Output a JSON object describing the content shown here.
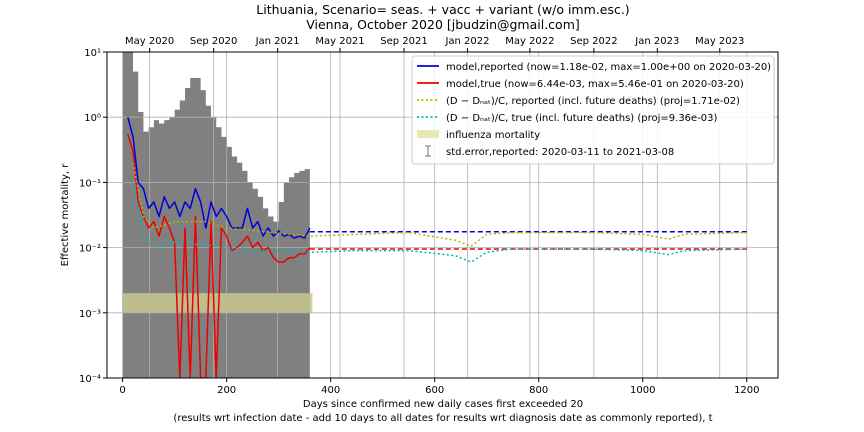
{
  "chart_data": {
    "type": "line",
    "title_line1": "Lithuania, Scenario= seas. + vacc + variant (w/o imm.esc.)",
    "title_line2": "Vienna, October 2020 [jbudzin@gmail.com]",
    "xlabel_line1": "Days since confirmed new daily cases first exceeded 20",
    "xlabel_line2": "(results wrt infection date - add 10 days to all dates for results wrt diagnosis date as commonly reported), t",
    "ylabel": "Effective mortality, r",
    "xlim": [
      -30,
      1260
    ],
    "ylim": [
      0.0001,
      10
    ],
    "yscale": "log",
    "grid": true,
    "legend_position": "top-right",
    "x_ticks": [
      0,
      200,
      400,
      600,
      800,
      1000,
      1200
    ],
    "y_ticks": [
      {
        "value": 0.0001,
        "label": "10⁻⁴"
      },
      {
        "value": 0.001,
        "label": "10⁻³"
      },
      {
        "value": 0.01,
        "label": "10⁻²"
      },
      {
        "value": 0.1,
        "label": "10⁻¹"
      },
      {
        "value": 1,
        "label": "10⁰"
      },
      {
        "value": 10,
        "label": "10¹"
      }
    ],
    "top_axis_ticks": [
      {
        "x": 52,
        "label": "May 2020"
      },
      {
        "x": 175,
        "label": "Sep 2020"
      },
      {
        "x": 298,
        "label": "Jan 2021"
      },
      {
        "x": 418,
        "label": "May 2021"
      },
      {
        "x": 541,
        "label": "Sep 2021"
      },
      {
        "x": 663,
        "label": "Jan 2022"
      },
      {
        "x": 783,
        "label": "May 2022"
      },
      {
        "x": 906,
        "label": "Sep 2022"
      },
      {
        "x": 1028,
        "label": "Jan 2023"
      },
      {
        "x": 1148,
        "label": "May 2023"
      }
    ],
    "influenza_band": {
      "x": [
        0,
        365
      ],
      "y": [
        0.001,
        0.002
      ]
    },
    "std_error_band": {
      "name": "std.error,reported: 2020-03-11 to 2021-03-08",
      "x": [
        0,
        10,
        20,
        30,
        40,
        50,
        60,
        70,
        80,
        90,
        100,
        110,
        120,
        130,
        140,
        150,
        160,
        170,
        180,
        190,
        200,
        210,
        220,
        230,
        240,
        250,
        260,
        270,
        280,
        290,
        300,
        310,
        320,
        330,
        340,
        350,
        360
      ],
      "upper": [
        10,
        10,
        5,
        1.2,
        0.6,
        0.7,
        0.9,
        0.8,
        0.9,
        1.0,
        1.3,
        1.8,
        2.8,
        4.0,
        4.0,
        2.6,
        1.5,
        1.0,
        0.7,
        0.5,
        0.35,
        0.25,
        0.2,
        0.15,
        0.1,
        0.08,
        0.06,
        0.04,
        0.03,
        0.025,
        0.05,
        0.1,
        0.12,
        0.14,
        0.15,
        0.16,
        0.16
      ]
    },
    "series": [
      {
        "name": "model,reported (now=1.18e-02, max=1.00e+00 on 2020-03-20)",
        "color": "#0000dd",
        "style": "solid",
        "x": [
          10,
          20,
          30,
          40,
          50,
          60,
          70,
          80,
          90,
          100,
          110,
          120,
          130,
          140,
          150,
          160,
          170,
          180,
          190,
          200,
          210,
          220,
          230,
          240,
          250,
          260,
          270,
          280,
          290,
          300,
          310,
          320,
          330,
          340,
          350,
          360
        ],
        "values": [
          1.0,
          0.5,
          0.1,
          0.08,
          0.04,
          0.05,
          0.03,
          0.06,
          0.04,
          0.05,
          0.03,
          0.05,
          0.04,
          0.08,
          0.05,
          0.02,
          0.05,
          0.03,
          0.04,
          0.03,
          0.02,
          0.02,
          0.02,
          0.04,
          0.02,
          0.025,
          0.015,
          0.02,
          0.015,
          0.018,
          0.015,
          0.016,
          0.014,
          0.015,
          0.014,
          0.02
        ]
      },
      {
        "name": "model,reported projection",
        "color": "#0000dd",
        "style": "dashed",
        "x": [
          360,
          1200
        ],
        "values": [
          0.0175,
          0.0175
        ]
      },
      {
        "name": "model,true (now=6.44e-03, max=5.46e-01 on 2020-03-20)",
        "color": "#ee0000",
        "style": "solid",
        "x": [
          10,
          20,
          30,
          40,
          50,
          60,
          70,
          80,
          90,
          100,
          110,
          120,
          130,
          140,
          150,
          160,
          170,
          180,
          190,
          200,
          210,
          220,
          230,
          240,
          250,
          260,
          270,
          280,
          290,
          300,
          310,
          320,
          330,
          340,
          350,
          360
        ],
        "values": [
          0.55,
          0.3,
          0.05,
          0.03,
          0.02,
          0.025,
          0.015,
          0.03,
          0.02,
          0.012,
          0.0001,
          0.02,
          0.0001,
          0.03,
          0.0001,
          0.0001,
          0.025,
          0.0001,
          0.02,
          0.015,
          0.009,
          0.01,
          0.012,
          0.015,
          0.01,
          0.012,
          0.009,
          0.01,
          0.007,
          0.006,
          0.006,
          0.007,
          0.007,
          0.008,
          0.008,
          0.01
        ]
      },
      {
        "name": "model,true projection",
        "color": "#ee0000",
        "style": "dashed",
        "x": [
          360,
          1200
        ],
        "values": [
          0.0095,
          0.0095
        ]
      },
      {
        "name": "(D − D_nat)/C, reported (incl. future deaths) (proj=1.71e-02)",
        "color": "#b5b500",
        "style": "dotted",
        "x": [
          20,
          40,
          60,
          100,
          160,
          200,
          260,
          360,
          450,
          550,
          640,
          670,
          700,
          750,
          900,
          1000,
          1050,
          1080,
          1200
        ],
        "values": [
          0.2,
          0.03,
          0.02,
          0.025,
          0.025,
          0.02,
          0.018,
          0.015,
          0.016,
          0.017,
          0.013,
          0.0105,
          0.016,
          0.017,
          0.017,
          0.016,
          0.0135,
          0.016,
          0.017
        ]
      },
      {
        "name": "(D − D_nat)/C, true (incl. future deaths) (proj=9.36e-03)",
        "color": "#00bbbb",
        "style": "dotted",
        "x": [
          20,
          40,
          60,
          100,
          160,
          200,
          260,
          360,
          450,
          550,
          640,
          670,
          700,
          750,
          900,
          1000,
          1050,
          1080,
          1200
        ],
        "values": [
          0.1,
          0.015,
          0.01,
          0.012,
          0.011,
          0.01,
          0.009,
          0.0085,
          0.009,
          0.009,
          0.0075,
          0.006,
          0.0085,
          0.0095,
          0.0095,
          0.009,
          0.0078,
          0.009,
          0.0095
        ]
      }
    ],
    "legend_entries": [
      {
        "label": "model,reported (now=1.18e-02, max=1.00e+00 on 2020-03-20)",
        "color": "#0000dd",
        "kind": "solid"
      },
      {
        "label": "model,true (now=6.44e-03, max=5.46e-01 on 2020-03-20)",
        "color": "#ee0000",
        "kind": "solid"
      },
      {
        "label": "(D − Dₙₐₜ)/C, reported (incl. future deaths) (proj=1.71e-02)",
        "color": "#b5b500",
        "kind": "dotted"
      },
      {
        "label": "(D − Dₙₐₜ)/C, true (incl. future deaths) (proj=9.36e-03)",
        "color": "#00bbbb",
        "kind": "dotted"
      },
      {
        "label": "influenza mortality",
        "color": "#e8e8b0",
        "kind": "patch"
      },
      {
        "label": "std.error,reported: 2020-03-11 to 2021-03-08",
        "color": "#888888",
        "kind": "errorbar"
      }
    ],
    "colors": {
      "std_error_fill": "#808080",
      "influenza_fill": "#c8c890",
      "grid": "#b0b0b0"
    }
  }
}
